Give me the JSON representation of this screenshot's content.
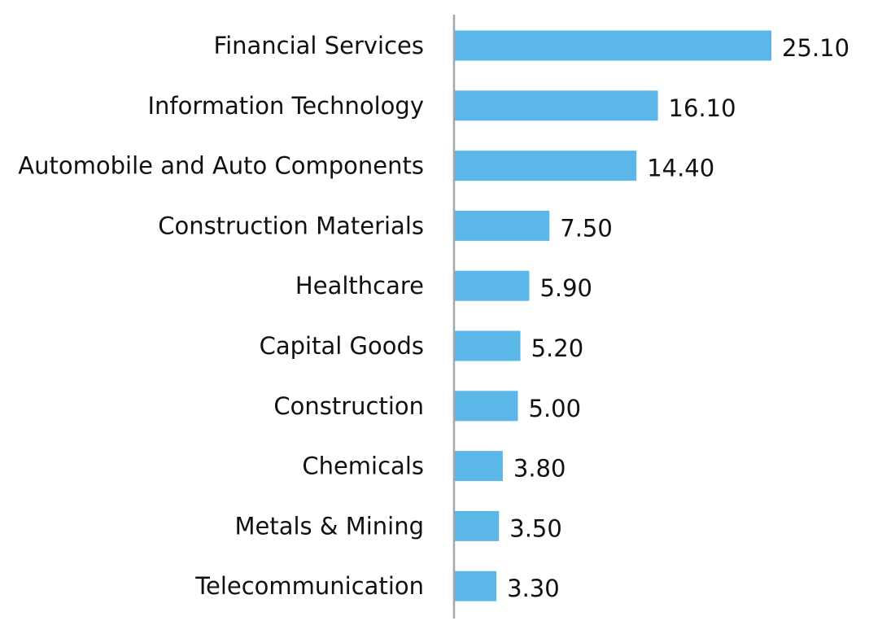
{
  "chart_data": {
    "type": "bar",
    "orientation": "horizontal",
    "categories": [
      "Financial Services",
      "Information Technology",
      "Automobile and Auto Components",
      "Construction Materials",
      "Healthcare",
      "Capital Goods",
      "Construction",
      "Chemicals",
      "Metals & Mining",
      "Telecommunication"
    ],
    "values": [
      25.1,
      16.1,
      14.4,
      7.5,
      5.9,
      5.2,
      5.0,
      3.8,
      3.5,
      3.3
    ],
    "value_labels": [
      "25.10",
      "16.10",
      "14.40",
      "7.50",
      "5.90",
      "5.20",
      "5.00",
      "3.80",
      "3.50",
      "3.30"
    ],
    "title": "",
    "xlabel": "",
    "ylabel": "",
    "xlim": [
      0,
      28
    ],
    "grid": false,
    "legend": "none",
    "bar_color": "#5BB7E8",
    "axis_color": "#A6A6A6"
  }
}
